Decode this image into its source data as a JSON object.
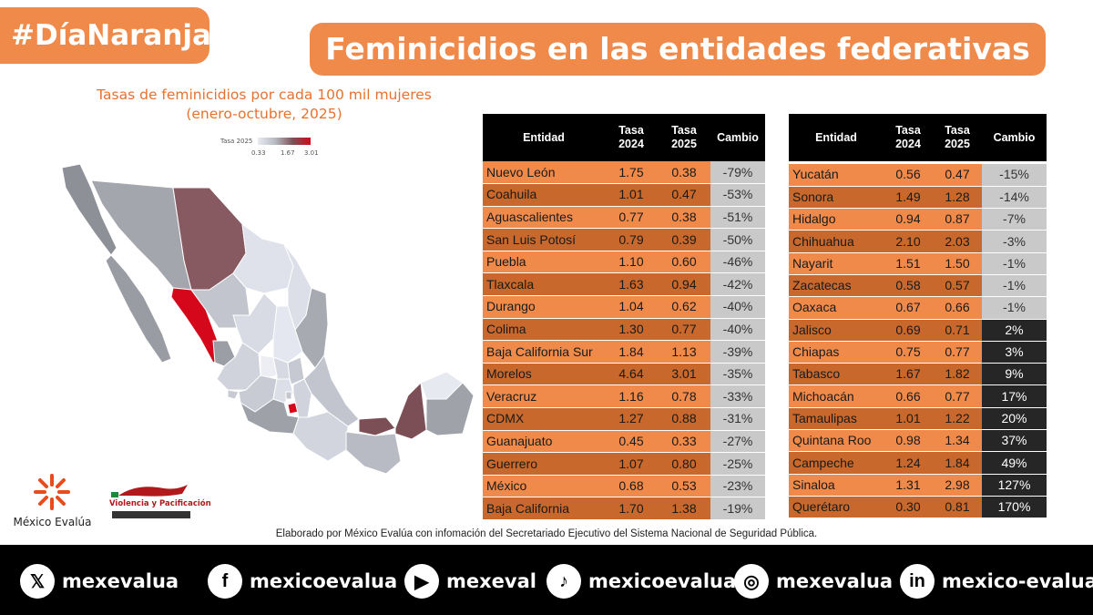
{
  "header": {
    "hashtag": "#DíaNaranja",
    "title": "Feminicidios en las entidades federativas"
  },
  "map": {
    "title_line1": "Tasas de feminicidios por cada 100 mil mujeres",
    "title_line2": "(enero-octubre, 2025)",
    "legend_label": "Tasa 2025",
    "legend_ticks": [
      "0.33",
      "1.67",
      "3.01"
    ]
  },
  "table": {
    "headers": {
      "entidad": "Entidad",
      "tasa2024_l1": "Tasa",
      "tasa2024_l2": "2024",
      "tasa2025_l1": "Tasa",
      "tasa2025_l2": "2025",
      "cambio": "Cambio"
    },
    "left_rows": [
      {
        "entidad": "Nuevo León",
        "t2024": "1.75",
        "t2025": "0.38",
        "cambio": "-79%"
      },
      {
        "entidad": "Coahuila",
        "t2024": "1.01",
        "t2025": "0.47",
        "cambio": "-53%"
      },
      {
        "entidad": "Aguascalientes",
        "t2024": "0.77",
        "t2025": "0.38",
        "cambio": "-51%"
      },
      {
        "entidad": "San Luis Potosí",
        "t2024": "0.79",
        "t2025": "0.39",
        "cambio": "-50%"
      },
      {
        "entidad": "Puebla",
        "t2024": "1.10",
        "t2025": "0.60",
        "cambio": "-46%"
      },
      {
        "entidad": "Tlaxcala",
        "t2024": "1.63",
        "t2025": "0.94",
        "cambio": "-42%"
      },
      {
        "entidad": "Durango",
        "t2024": "1.04",
        "t2025": "0.62",
        "cambio": "-40%"
      },
      {
        "entidad": "Colima",
        "t2024": "1.30",
        "t2025": "0.77",
        "cambio": "-40%"
      },
      {
        "entidad": "Baja California Sur",
        "t2024": "1.84",
        "t2025": "1.13",
        "cambio": "-39%"
      },
      {
        "entidad": "Morelos",
        "t2024": "4.64",
        "t2025": "3.01",
        "cambio": "-35%"
      },
      {
        "entidad": "Veracruz",
        "t2024": "1.16",
        "t2025": "0.78",
        "cambio": "-33%"
      },
      {
        "entidad": "CDMX",
        "t2024": "1.27",
        "t2025": "0.88",
        "cambio": "-31%"
      },
      {
        "entidad": "Guanajuato",
        "t2024": "0.45",
        "t2025": "0.33",
        "cambio": "-27%"
      },
      {
        "entidad": "Guerrero",
        "t2024": "1.07",
        "t2025": "0.80",
        "cambio": "-25%"
      },
      {
        "entidad": "México",
        "t2024": "0.68",
        "t2025": "0.53",
        "cambio": "-23%"
      },
      {
        "entidad": "Baja California",
        "t2024": "1.70",
        "t2025": "1.38",
        "cambio": "-19%"
      }
    ],
    "right_rows": [
      {
        "entidad": "Yucatán",
        "t2024": "0.56",
        "t2025": "0.47",
        "cambio": "-15%"
      },
      {
        "entidad": "Sonora",
        "t2024": "1.49",
        "t2025": "1.28",
        "cambio": "-14%"
      },
      {
        "entidad": "Hidalgo",
        "t2024": "0.94",
        "t2025": "0.87",
        "cambio": "-7%"
      },
      {
        "entidad": "Chihuahua",
        "t2024": "2.10",
        "t2025": "2.03",
        "cambio": "-3%"
      },
      {
        "entidad": "Nayarit",
        "t2024": "1.51",
        "t2025": "1.50",
        "cambio": "-1%"
      },
      {
        "entidad": "Zacatecas",
        "t2024": "0.58",
        "t2025": "0.57",
        "cambio": "-1%"
      },
      {
        "entidad": "Oaxaca",
        "t2024": "0.67",
        "t2025": "0.66",
        "cambio": "-1%"
      },
      {
        "entidad": "Jalisco",
        "t2024": "0.69",
        "t2025": "0.71",
        "cambio": "2%"
      },
      {
        "entidad": "Chiapas",
        "t2024": "0.75",
        "t2025": "0.77",
        "cambio": "3%"
      },
      {
        "entidad": "Tabasco",
        "t2024": "1.67",
        "t2025": "1.82",
        "cambio": "9%"
      },
      {
        "entidad": "Michoacán",
        "t2024": "0.66",
        "t2025": "0.77",
        "cambio": "17%"
      },
      {
        "entidad": "Tamaulipas",
        "t2024": "1.01",
        "t2025": "1.22",
        "cambio": "20%"
      },
      {
        "entidad": "Quintana Roo",
        "t2024": "0.98",
        "t2025": "1.34",
        "cambio": "37%"
      },
      {
        "entidad": "Campeche",
        "t2024": "1.24",
        "t2025": "1.84",
        "cambio": "49%"
      },
      {
        "entidad": "Sinaloa",
        "t2024": "1.31",
        "t2025": "2.98",
        "cambio": "127%"
      },
      {
        "entidad": "Querétaro",
        "t2024": "0.30",
        "t2025": "0.81",
        "cambio": "170%"
      }
    ]
  },
  "logos": {
    "mexico_evalua": "México Evalúa",
    "violencia_pacificacion": "Violencia y Pacificación"
  },
  "source": "Elaborado por México Evalúa con infomación del Secretariado Ejecutivo del Sistema Nacional de Seguridad Pública.",
  "footer": {
    "socials": [
      {
        "icon": "x-icon",
        "glyph": "𝕏",
        "handle": "mexevalua"
      },
      {
        "icon": "facebook-icon",
        "glyph": "f",
        "handle": "mexicoevalua"
      },
      {
        "icon": "youtube-icon",
        "glyph": "▶",
        "handle": "mexeval"
      },
      {
        "icon": "tiktok-icon",
        "glyph": "♪",
        "handle": "mexicoevalua"
      },
      {
        "icon": "instagram-icon",
        "glyph": "◎",
        "handle": "mexevalua"
      },
      {
        "icon": "linkedin-icon",
        "glyph": "in",
        "handle": "mexico-evalua"
      }
    ]
  },
  "colors": {
    "orange": "#f08a4b",
    "orange_dark": "#c8682c",
    "decrease_cell": "#c9c9c9",
    "increase_cell": "#262626",
    "map_high": "#d4081a",
    "map_mid": "#7c4e55",
    "map_low": "#e8ebf2"
  }
}
